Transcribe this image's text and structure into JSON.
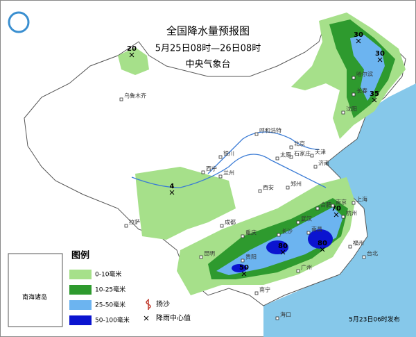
{
  "header": {
    "title": "全国降水量预报图",
    "period": "5月25日08时—26日08时",
    "agency": "中央气象台"
  },
  "legend": {
    "title": "图例",
    "items": [
      "0-10毫米",
      "10-25毫米",
      "25-50毫米",
      "50-100毫米"
    ],
    "symbols": [
      "扬沙",
      "降雨中心值"
    ]
  },
  "centers": [
    20,
    30,
    30,
    35,
    4,
    70,
    80,
    80,
    50
  ],
  "cities": [
    "乌鲁木齐",
    "哈尔滨",
    "长春",
    "沈阳",
    "呼和浩特",
    "北京",
    "天津",
    "石家庄",
    "太原",
    "济南",
    "银川",
    "西宁",
    "兰州",
    "郑州",
    "西安",
    "合肥",
    "南京",
    "上海",
    "杭州",
    "武汉",
    "成都",
    "重庆",
    "长沙",
    "南昌",
    "福州",
    "台北",
    "贵阳",
    "昆明",
    "南宁",
    "广州",
    "拉萨",
    "海口"
  ],
  "inset": "南海诸岛",
  "footer": "5月23日06时发布"
}
